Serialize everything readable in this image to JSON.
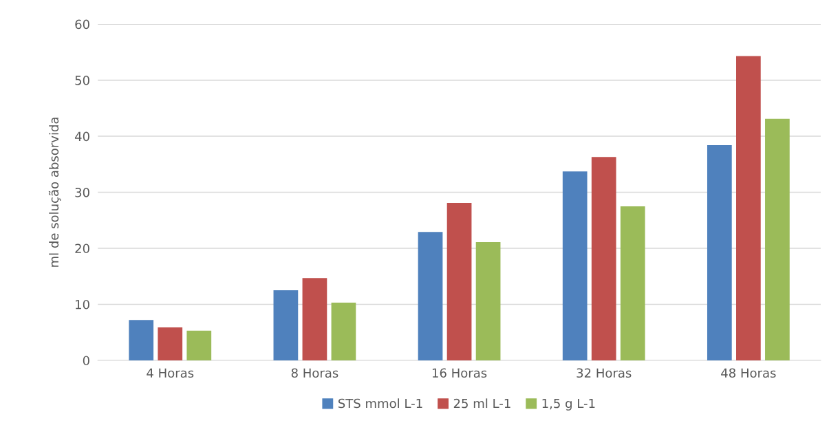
{
  "chart_data": {
    "type": "bar",
    "ylabel": "ml de solução absorvida",
    "categories": [
      "4 Horas",
      "8 Horas",
      "16 Horas",
      "32 Horas",
      "48 Horas"
    ],
    "series": [
      {
        "name": "STS mmol L-1",
        "color": "#4f81bd",
        "values": [
          7.2,
          12.5,
          22.9,
          33.7,
          38.4
        ]
      },
      {
        "name": "25 ml L-1",
        "color": "#c0504d",
        "values": [
          5.9,
          14.7,
          28.1,
          36.3,
          54.3
        ]
      },
      {
        "name": "1,5 g L-1",
        "color": "#9bbb59",
        "values": [
          5.3,
          10.3,
          21.1,
          27.5,
          43.1
        ]
      }
    ],
    "ylim": [
      0,
      60
    ],
    "yticks": [
      0,
      10,
      20,
      30,
      40,
      50,
      60
    ],
    "grid": "y",
    "legend": "bottom"
  }
}
